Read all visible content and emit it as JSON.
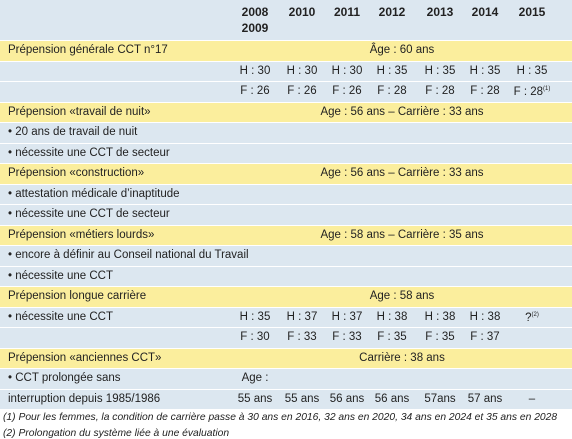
{
  "header": {
    "columns": [
      [
        "2008",
        "2009"
      ],
      [
        "2010"
      ],
      [
        "2011"
      ],
      [
        "2012"
      ],
      [
        "2013"
      ],
      [
        "2014"
      ],
      [
        "2015"
      ]
    ]
  },
  "rows": [
    {
      "label": "Prépension générale CCT n°17",
      "span": "Âge : 60 ans"
    },
    {
      "cells": [
        "H : 30",
        "H : 30",
        "H : 30",
        "H : 35",
        "H : 35",
        "H : 35",
        "H : 35"
      ]
    },
    {
      "cells": [
        "F : 26",
        "F : 26",
        "F : 26",
        "F : 28",
        "F : 28",
        "F : 28",
        {
          "text": "F : 28",
          "note": "(1)"
        }
      ]
    },
    {
      "label": "Prépension «travail de nuit»",
      "span": "Age : 56 ans – Carrière : 33 ans"
    },
    {
      "label": "• 20 ans de travail de nuit"
    },
    {
      "label": "• nécessite une CCT de secteur"
    },
    {
      "label": "Prépension «construction»",
      "span": "Age : 56 ans – Carrière : 33 ans"
    },
    {
      "label": "• attestation médicale d’inaptitude"
    },
    {
      "label": "• nécessite une CCT de secteur"
    },
    {
      "label": "Prépension «métiers lourds»",
      "span": "Age : 58 ans – Carrière : 35 ans"
    },
    {
      "label": "• encore à définir au Conseil national du Travail"
    },
    {
      "label": "• nécessite une CCT"
    },
    {
      "label": "Prépension longue carrière",
      "span": "Age : 58 ans"
    },
    {
      "label": "• nécessite une CCT",
      "cells": [
        "H : 35",
        "H : 37",
        "H : 37",
        "H : 38",
        "H : 38",
        "H : 38",
        {
          "text": "?",
          "note": "(2)"
        }
      ]
    },
    {
      "cells": [
        "F : 30",
        "F : 33",
        "F : 33",
        "F : 35",
        "F : 35",
        "F : 37"
      ]
    },
    {
      "label": "Prépension «anciennes CCT»",
      "span": "Carrière : 38 ans"
    },
    {
      "label": "• CCT prolongée sans",
      "cells": [
        "Age :"
      ]
    },
    {
      "label": "interruption depuis 1985/1986",
      "cells": [
        "55 ans",
        "55 ans",
        "56 ans",
        "56 ans",
        "57ans",
        "57 ans",
        "–"
      ]
    }
  ],
  "footnotes": [
    "(1) Pour les femmes, la condition de carrière passe à 30 ans en 2016, 32 ans en 2020, 34 ans en 2024 et 35 ans en 2028",
    "(2) Prolongation du système liée à une évaluation"
  ]
}
